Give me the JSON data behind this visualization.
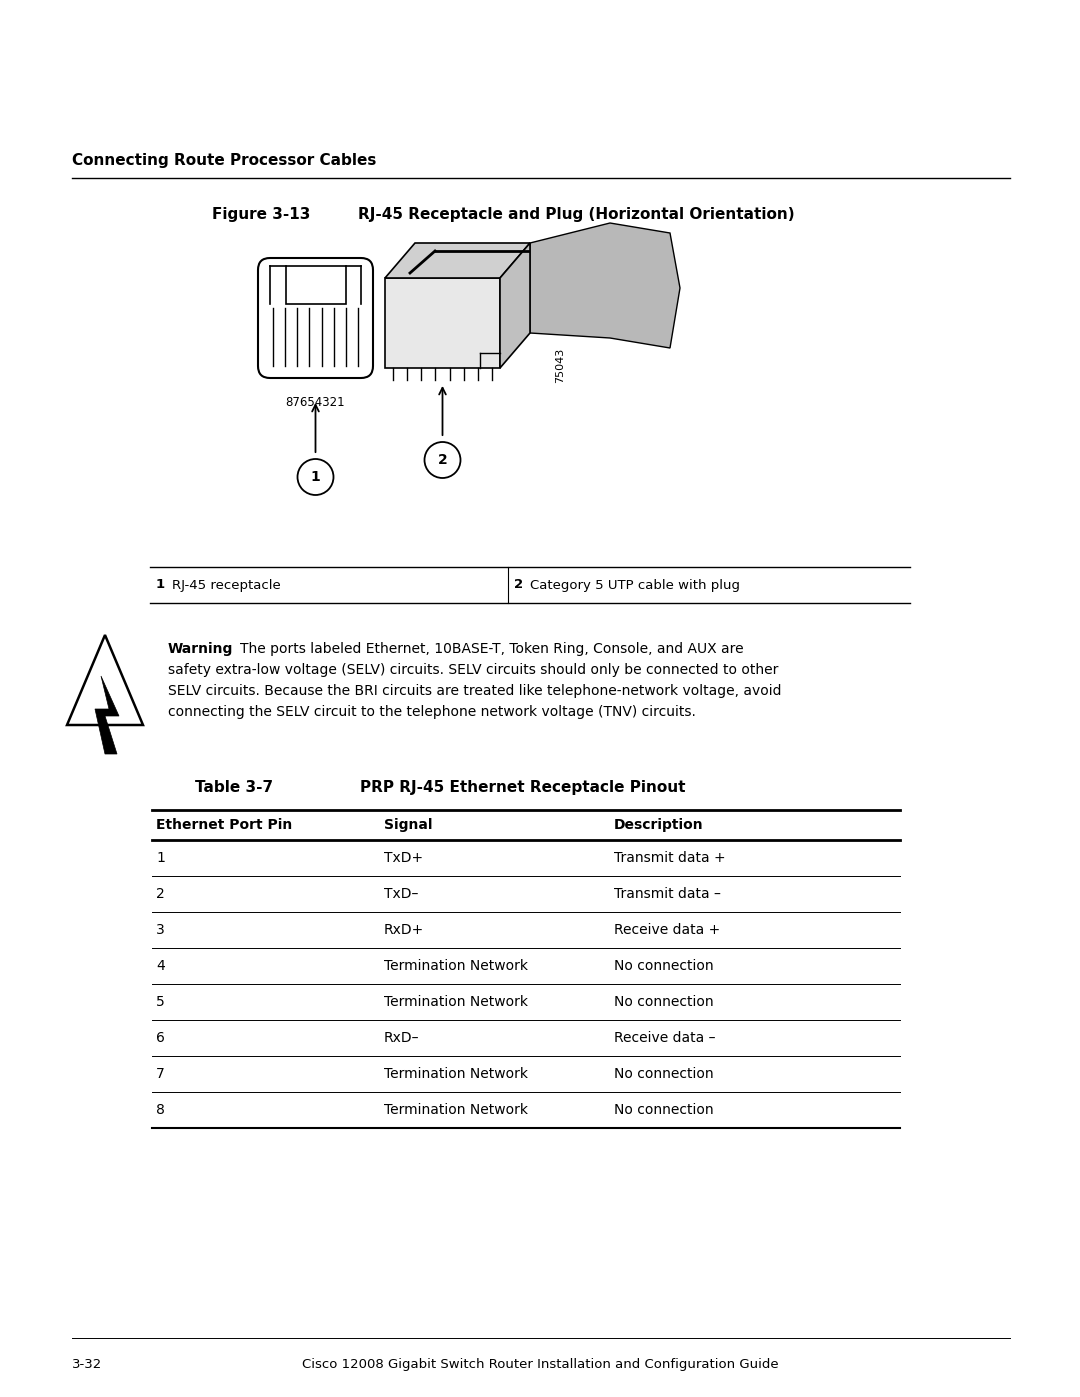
{
  "bg_color": "#ffffff",
  "page_header": "Connecting Route Processor Cables",
  "figure_label": "Figure 3-13",
  "figure_title": "RJ-45 Receptacle and Plug (Horizontal Orientation)",
  "callout_1": "1",
  "callout_2": "2",
  "pin_label": "87654321",
  "diagram_id": "75043",
  "legend_items": [
    {
      "num": "1",
      "desc": "RJ-45 receptacle"
    },
    {
      "num": "2",
      "desc": "Category 5 UTP cable with plug"
    }
  ],
  "warning_title": "Warning",
  "warning_line1": "  The ports labeled Ethernet, 10BASE-T, Token Ring, Console, and AUX are",
  "warning_line2": "safety extra-low voltage (SELV) circuits. SELV circuits should only be connected to other",
  "warning_line3": "SELV circuits. Because the BRI circuits are treated like telephone-network voltage, avoid",
  "warning_line4": "connecting the SELV circuit to the telephone network voltage (TNV) circuits.",
  "table_title_label": "Table 3-7",
  "table_title_text": "PRP RJ-45 Ethernet Receptacle Pinout",
  "table_headers": [
    "Ethernet Port Pin",
    "Signal",
    "Description"
  ],
  "table_rows": [
    [
      "1",
      "TxD+",
      "Transmit data +"
    ],
    [
      "2",
      "TxD–",
      "Transmit data –"
    ],
    [
      "3",
      "RxD+",
      "Receive data +"
    ],
    [
      "4",
      "Termination Network",
      "No connection"
    ],
    [
      "5",
      "Termination Network",
      "No connection"
    ],
    [
      "6",
      "RxD–",
      "Receive data –"
    ],
    [
      "7",
      "Termination Network",
      "No connection"
    ],
    [
      "8",
      "Termination Network",
      "No connection"
    ]
  ],
  "footer_left": "3-32",
  "footer_right": "Cisco 12008 Gigabit Switch Router Installation and Configuration Guide"
}
